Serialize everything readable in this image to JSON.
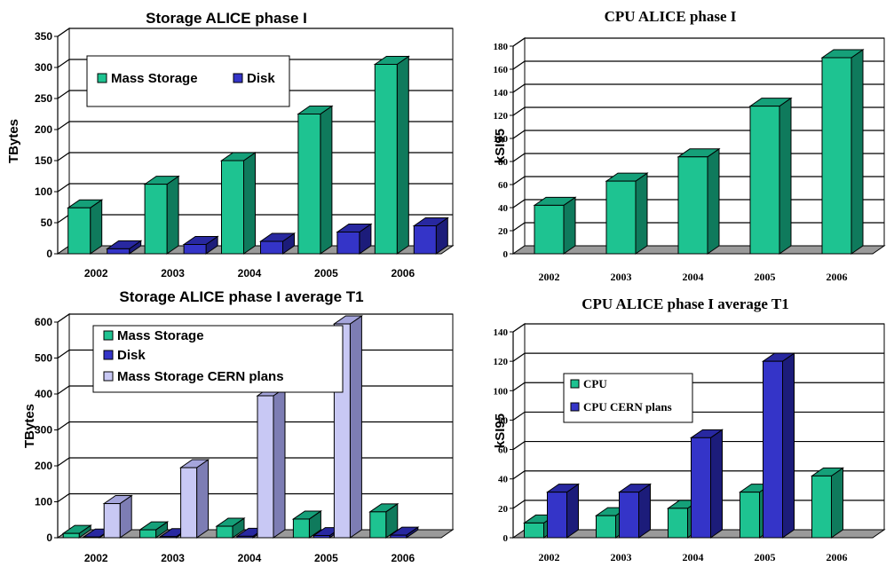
{
  "colors": {
    "green_front": "#1ec391",
    "green_side": "#0f7a5c",
    "green_top": "#15a079",
    "blue_front": "#3434c8",
    "blue_side": "#1c1c7a",
    "blue_top": "#2828a0",
    "lav_front": "#c8c8f4",
    "lav_side": "#7d7db4",
    "lav_top": "#a5a5dc",
    "floor": "#9a9a9a"
  },
  "chart_data": [
    {
      "id": "c1",
      "type": "bar",
      "title": "Storage ALICE  phase I",
      "ylabel": "TBytes",
      "categories": [
        "2002",
        "2003",
        "2004",
        "2005",
        "2006"
      ],
      "ylim": [
        0,
        350
      ],
      "yticks": [
        "0",
        "50",
        "100",
        "150",
        "200",
        "250",
        "300",
        "350"
      ],
      "grid": true,
      "legend": "top-left, horizontal",
      "series": [
        {
          "name": "Mass Storage",
          "values": [
            74,
            112,
            150,
            225,
            305
          ],
          "color": "green"
        },
        {
          "name": "Disk",
          "values": [
            8,
            15,
            20,
            35,
            45
          ],
          "color": "blue"
        }
      ]
    },
    {
      "id": "c2",
      "type": "bar",
      "title": "CPU ALICE phase I",
      "ylabel": "kSI95",
      "categories": [
        "2002",
        "2003",
        "2004",
        "2005",
        "2006"
      ],
      "ylim": [
        0,
        180
      ],
      "yticks": [
        "0",
        "20",
        "40",
        "60",
        "80",
        "100",
        "120",
        "140",
        "160",
        "180"
      ],
      "grid": true,
      "legend": "none",
      "series": [
        {
          "name": "",
          "values": [
            42,
            63,
            84,
            128,
            170
          ],
          "color": "green"
        }
      ]
    },
    {
      "id": "c3",
      "type": "bar",
      "title": "Storage ALICE phase I average T1",
      "ylabel": "TBytes",
      "categories": [
        "2002",
        "2003",
        "2004",
        "2005",
        "2006"
      ],
      "ylim": [
        0,
        600
      ],
      "yticks": [
        "0",
        "100",
        "200",
        "300",
        "400",
        "500",
        "600"
      ],
      "grid": true,
      "legend": "top-left, vertical",
      "series": [
        {
          "name": "Mass Storage",
          "values": [
            12,
            22,
            32,
            52,
            72
          ],
          "color": "green"
        },
        {
          "name": "Disk",
          "values": [
            2,
            3,
            4,
            6,
            7
          ],
          "color": "blue"
        },
        {
          "name": "Mass Storage CERN plans",
          "values": [
            95,
            195,
            395,
            595,
            0
          ],
          "color": "lav"
        }
      ]
    },
    {
      "id": "c4",
      "type": "bar",
      "title": "CPU ALICE phase I average T1",
      "ylabel": "kSI95",
      "categories": [
        "2002",
        "2003",
        "2004",
        "2005",
        "2006"
      ],
      "ylim": [
        0,
        140
      ],
      "yticks": [
        "0",
        "20",
        "40",
        "60",
        "80",
        "100",
        "120",
        "140"
      ],
      "grid": true,
      "legend": "left, vertical",
      "series": [
        {
          "name": "CPU",
          "values": [
            10,
            15,
            20,
            31,
            42
          ],
          "color": "green"
        },
        {
          "name": "CPU CERN plans",
          "values": [
            31,
            31,
            68,
            120,
            0
          ],
          "color": "blue"
        }
      ]
    }
  ]
}
